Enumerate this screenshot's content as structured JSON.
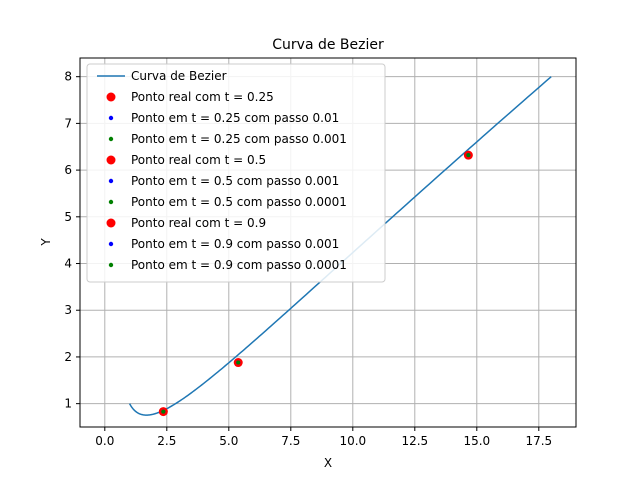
{
  "chart_data": {
    "type": "line",
    "title": "Curva de Bezier",
    "xlabel": "X",
    "ylabel": "Y",
    "xlim": [
      -1.0,
      19.0
    ],
    "ylim": [
      0.5,
      8.4
    ],
    "xticks": [
      0.0,
      2.5,
      5.0,
      7.5,
      10.0,
      12.5,
      15.0,
      17.5
    ],
    "xtick_labels": [
      "0.0",
      "2.5",
      "5.0",
      "7.5",
      "10.0",
      "12.5",
      "15.0",
      "17.5"
    ],
    "yticks": [
      1,
      2,
      3,
      4,
      5,
      6,
      7,
      8
    ],
    "ytick_labels": [
      "1",
      "2",
      "3",
      "4",
      "5",
      "6",
      "7",
      "8"
    ],
    "grid": true,
    "legend_position": "top-left",
    "curve": {
      "name": "Curva de Bezier",
      "color": "#1f77b4",
      "control_points": [
        [
          1,
          1
        ],
        [
          2,
          0
        ],
        [
          5,
          2
        ],
        [
          18,
          8
        ]
      ]
    },
    "series": [
      {
        "name": "Ponto real com t = 0.25",
        "color": "#ff0000",
        "marker": "large",
        "x": [
          2.36
        ],
        "y": [
          0.83
        ]
      },
      {
        "name": "Ponto em t = 0.25 com passo 0.01",
        "color": "#0000ff",
        "marker": "small",
        "x": [
          2.36
        ],
        "y": [
          0.83
        ]
      },
      {
        "name": "Ponto em t = 0.25 com passo 0.001",
        "color": "#008000",
        "marker": "small",
        "x": [
          2.36
        ],
        "y": [
          0.83
        ]
      },
      {
        "name": "Ponto real com t = 0.5",
        "color": "#ff0000",
        "marker": "large",
        "x": [
          5.38
        ],
        "y": [
          1.88
        ]
      },
      {
        "name": "Ponto em t = 0.5 com passo 0.001",
        "color": "#0000ff",
        "marker": "small",
        "x": [
          5.38
        ],
        "y": [
          1.88
        ]
      },
      {
        "name": "Ponto em t = 0.5 com passo 0.0001",
        "color": "#008000",
        "marker": "small",
        "x": [
          5.38
        ],
        "y": [
          1.88
        ]
      },
      {
        "name": "Ponto real com t = 0.9",
        "color": "#ff0000",
        "marker": "large",
        "x": [
          14.66
        ],
        "y": [
          6.32
        ]
      },
      {
        "name": "Ponto em t = 0.9 com passo 0.001",
        "color": "#0000ff",
        "marker": "small",
        "x": [
          14.66
        ],
        "y": [
          6.32
        ]
      },
      {
        "name": "Ponto em t = 0.9 com passo 0.0001",
        "color": "#008000",
        "marker": "small",
        "x": [
          14.66
        ],
        "y": [
          6.32
        ]
      }
    ]
  }
}
